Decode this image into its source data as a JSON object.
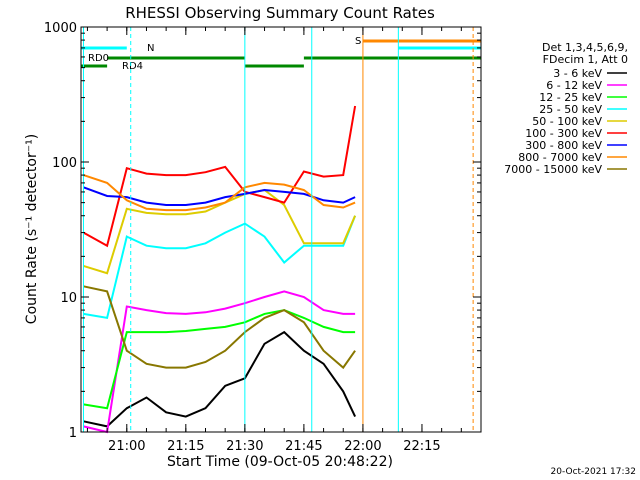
{
  "chart_data": {
    "type": "line",
    "title": "RHESSI Observing Summary Count Rates",
    "ylabel": "Count Rate (s⁻¹ detector⁻¹)",
    "xlabel": "Start Time (09-Oct-05 20:48:22)",
    "y_scale": "log",
    "ylim": [
      1,
      1000
    ],
    "xlim": [
      "20:48:22",
      "22:30:00"
    ],
    "grid": false,
    "legend_position": "top-right",
    "x_ticks": [
      "21:00",
      "21:15",
      "21:30",
      "21:45",
      "22:00",
      "22:15"
    ],
    "y_ticks": [
      "1",
      "10",
      "100",
      "1000"
    ],
    "legend_header": [
      "Det 1,3,4,5,6,9,",
      "FDecim 1, Att 0"
    ],
    "footer_date": "20-Oct-2021 17:32",
    "flag_labels": {
      "rd0": "RD0",
      "rd4": "RD4",
      "n": "N",
      "s": "S"
    },
    "series": [
      {
        "name": "3 - 6 keV",
        "color": "#000000",
        "x": [
          "20:49",
          "20:55",
          "21:00",
          "21:05",
          "21:10",
          "21:15",
          "21:20",
          "21:25",
          "21:30",
          "21:35",
          "21:40",
          "21:45",
          "21:50",
          "21:55",
          "21:58"
        ],
        "y": [
          1.2,
          1.1,
          1.5,
          1.8,
          1.4,
          1.3,
          1.5,
          2.2,
          2.5,
          4.5,
          5.5,
          4.0,
          3.2,
          2.0,
          1.3
        ]
      },
      {
        "name": "6 - 12 keV",
        "color": "#ff00ff",
        "x": [
          "20:49",
          "20:55",
          "21:00",
          "21:05",
          "21:10",
          "21:15",
          "21:20",
          "21:25",
          "21:30",
          "21:35",
          "21:40",
          "21:45",
          "21:50",
          "21:55",
          "21:58"
        ],
        "y": [
          1.1,
          1.0,
          8.5,
          8.0,
          7.6,
          7.5,
          7.7,
          8.2,
          9.0,
          10.0,
          11.0,
          10.0,
          8.0,
          7.5,
          7.5
        ]
      },
      {
        "name": "12 - 25 keV",
        "color": "#00ff00",
        "x": [
          "20:49",
          "20:55",
          "21:00",
          "21:05",
          "21:10",
          "21:15",
          "21:20",
          "21:25",
          "21:30",
          "21:35",
          "21:40",
          "21:45",
          "21:50",
          "21:55",
          "21:58"
        ],
        "y": [
          1.6,
          1.5,
          5.5,
          5.5,
          5.5,
          5.6,
          5.8,
          6.0,
          6.5,
          7.5,
          8.0,
          7.0,
          6.0,
          5.5,
          5.5
        ]
      },
      {
        "name": "25 - 50 keV",
        "color": "#00ffff",
        "x": [
          "20:49",
          "20:55",
          "21:00",
          "21:05",
          "21:10",
          "21:15",
          "21:20",
          "21:25",
          "21:30",
          "21:35",
          "21:40",
          "21:45",
          "21:50",
          "21:55",
          "21:58"
        ],
        "y": [
          7.5,
          7.0,
          28,
          24,
          23,
          23,
          25,
          30,
          35,
          28,
          18,
          24,
          24,
          24,
          40
        ]
      },
      {
        "name": "50 - 100 keV",
        "color": "#ddcc00",
        "x": [
          "20:49",
          "20:55",
          "21:00",
          "21:05",
          "21:10",
          "21:15",
          "21:20",
          "21:25",
          "21:30",
          "21:35",
          "21:40",
          "21:45",
          "21:50",
          "21:55",
          "21:58"
        ],
        "y": [
          17,
          15,
          45,
          42,
          41,
          41,
          43,
          50,
          58,
          62,
          48,
          25,
          25,
          25,
          40
        ]
      },
      {
        "name": "100 - 300 keV",
        "color": "#ff0000",
        "x": [
          "20:49",
          "20:55",
          "21:00",
          "21:05",
          "21:10",
          "21:15",
          "21:20",
          "21:25",
          "21:30",
          "21:35",
          "21:40",
          "21:45",
          "21:50",
          "21:55",
          "21:58"
        ],
        "y": [
          30,
          24,
          90,
          82,
          80,
          80,
          84,
          92,
          60,
          55,
          50,
          85,
          78,
          80,
          260
        ]
      },
      {
        "name": "300 - 800 keV",
        "color": "#0000ff",
        "x": [
          "20:49",
          "20:55",
          "21:00",
          "21:05",
          "21:10",
          "21:15",
          "21:20",
          "21:25",
          "21:30",
          "21:35",
          "21:40",
          "21:45",
          "21:50",
          "21:55",
          "21:58"
        ],
        "y": [
          65,
          56,
          55,
          50,
          48,
          48,
          50,
          55,
          58,
          62,
          60,
          58,
          52,
          50,
          55
        ]
      },
      {
        "name": "800 - 7000 keV",
        "color": "#ff8800",
        "x": [
          "20:49",
          "20:55",
          "21:00",
          "21:05",
          "21:10",
          "21:15",
          "21:20",
          "21:25",
          "21:30",
          "21:35",
          "21:40",
          "21:45",
          "21:50",
          "21:55",
          "21:58"
        ],
        "y": [
          80,
          70,
          52,
          45,
          44,
          44,
          46,
          50,
          65,
          70,
          68,
          62,
          48,
          46,
          50
        ]
      },
      {
        "name": "7000 - 15000 keV",
        "color": "#887700",
        "x": [
          "20:49",
          "20:55",
          "21:00",
          "21:05",
          "21:10",
          "21:15",
          "21:20",
          "21:25",
          "21:30",
          "21:35",
          "21:40",
          "21:45",
          "21:50",
          "21:55",
          "21:58"
        ],
        "y": [
          12,
          11,
          4.0,
          3.2,
          3.0,
          3.0,
          3.3,
          4.0,
          5.5,
          7.0,
          8.0,
          6.5,
          4.0,
          3.0,
          4.0
        ]
      }
    ]
  }
}
